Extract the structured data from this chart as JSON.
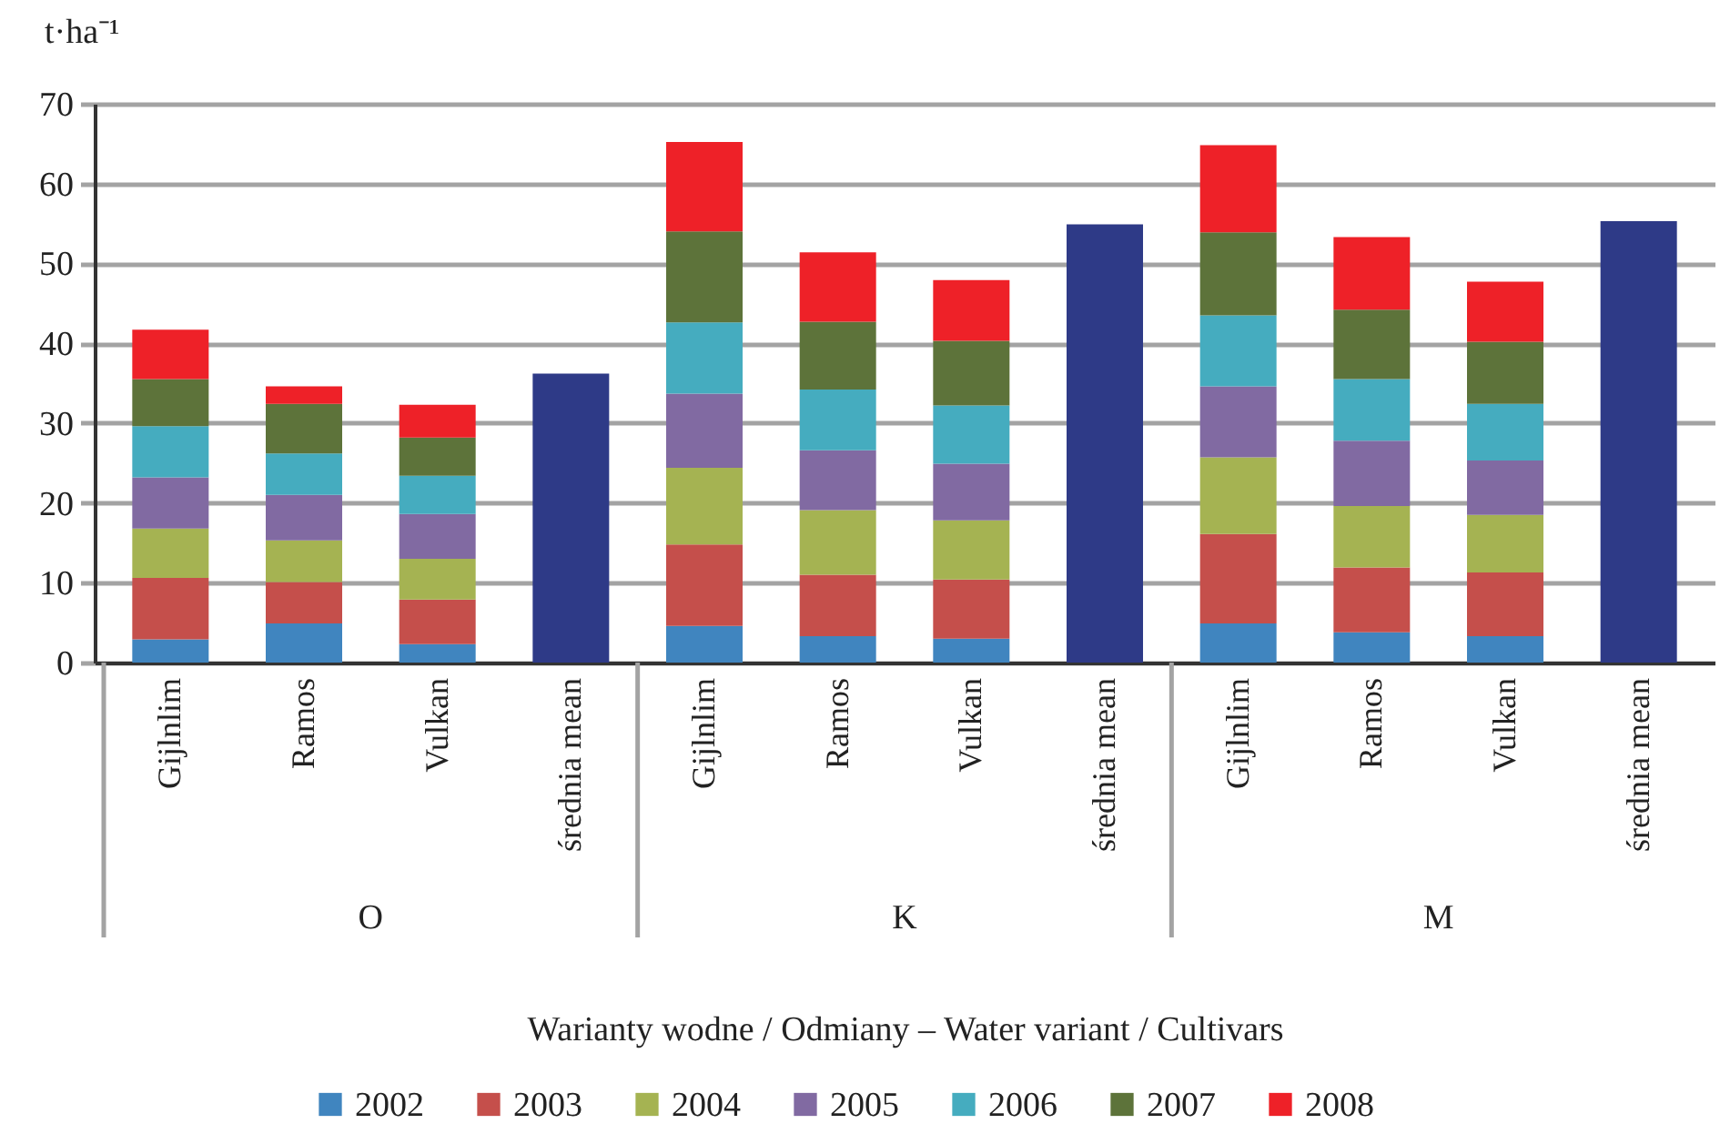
{
  "chart_data": {
    "type": "bar",
    "stacked": true,
    "ylabel": "t·ha⁻¹",
    "xlabel": "Warianty wodne / Odmiany – Water variant / Cultivars",
    "categories": [
      "Gijlnlim",
      "Ramos",
      "Vulkan",
      "średnia mean",
      "Gijlnlim",
      "Ramos",
      "Vulkan",
      "średnia mean",
      "Gijlnlim",
      "Ramos",
      "Vulkan",
      "średnia mean"
    ],
    "annotations": [
      "O",
      "K",
      "M"
    ],
    "series": [
      {
        "name": "2002",
        "color": "#4085bf",
        "values": [
          2.9,
          4.9,
          2.3,
          null,
          4.6,
          3.3,
          3.0,
          null,
          4.9,
          3.8,
          3.3,
          null
        ]
      },
      {
        "name": "2003",
        "color": "#c54f4b",
        "values": [
          7.7,
          5.2,
          5.6,
          null,
          10.2,
          7.7,
          7.4,
          null,
          11.2,
          8.1,
          8.0,
          null
        ]
      },
      {
        "name": "2004",
        "color": "#a5b352",
        "values": [
          6.2,
          5.2,
          5.1,
          null,
          9.6,
          8.1,
          7.4,
          null,
          9.6,
          7.7,
          7.2,
          null
        ]
      },
      {
        "name": "2005",
        "color": "#816aa2",
        "values": [
          6.4,
          5.7,
          5.6,
          null,
          9.3,
          7.5,
          7.1,
          null,
          8.9,
          8.2,
          6.8,
          null
        ]
      },
      {
        "name": "2006",
        "color": "#45acbf",
        "values": [
          6.4,
          5.2,
          4.8,
          null,
          8.9,
          7.6,
          7.3,
          null,
          8.9,
          7.7,
          7.1,
          null
        ]
      },
      {
        "name": "2007",
        "color": "#5d733a",
        "values": [
          5.9,
          6.2,
          4.8,
          null,
          11.4,
          8.5,
          8.1,
          null,
          10.4,
          8.7,
          7.8,
          null
        ]
      },
      {
        "name": "2008",
        "color": "#ee2128",
        "values": [
          6.2,
          2.2,
          4.1,
          null,
          11.2,
          8.7,
          7.6,
          null,
          10.9,
          9.1,
          7.5,
          null
        ]
      },
      {
        "color": "#2e3a87",
        "values": [
          null,
          null,
          null,
          36.2,
          null,
          null,
          null,
          54.9,
          null,
          null,
          null,
          55.3
        ]
      }
    ],
    "ylim": [
      0,
      70
    ],
    "yticks": [
      0,
      10,
      20,
      30,
      40,
      50,
      60,
      70
    ],
    "grid": "y",
    "legend": "bottom"
  }
}
